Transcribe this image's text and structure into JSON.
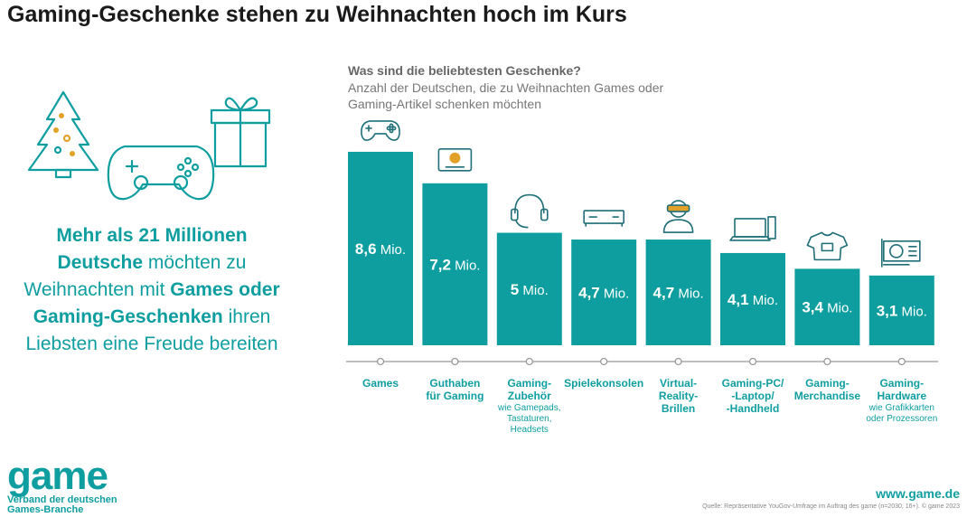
{
  "title": "Gaming-Geschenke stehen zu Weihnachten hoch im Kurs",
  "headline": {
    "part1": "Mehr als 21 Millionen Deutsche",
    "part2": " möchten zu Weihnachten mit ",
    "part3": "Games oder Gaming-Geschenken",
    "part4": " ihren Liebsten eine Freude bereiten"
  },
  "chart_data": {
    "type": "bar",
    "title": "Was sind die beliebtesten Geschenke?",
    "subtitle": "Anzahl der Deutschen, die zu Weihnachten Games oder Gaming-Artikel schenken möchten",
    "unit": "Mio.",
    "ylim": [
      0,
      9
    ],
    "categories": [
      "Games",
      "Guthaben für Gaming",
      "Gaming-Zubehör",
      "Spielekonsolen",
      "Virtual-Reality-Brillen",
      "Gaming-PC/-Laptop/-Handheld",
      "Gaming-Merchandise",
      "Gaming-Hardware"
    ],
    "category_lines": [
      [
        "Games"
      ],
      [
        "Guthaben",
        "für Gaming"
      ],
      [
        "Gaming-",
        "Zubehör"
      ],
      [
        "Spielekonsolen"
      ],
      [
        "Virtual-",
        "Reality-",
        "Brillen"
      ],
      [
        "Gaming-PC/",
        "-Laptop/",
        "-Handheld"
      ],
      [
        "Gaming-",
        "Merchandise"
      ],
      [
        "Gaming-",
        "Hardware"
      ]
    ],
    "category_notes": [
      [],
      [],
      [
        "wie Gamepads,",
        "Tastaturen,",
        "Headsets"
      ],
      [],
      [],
      [],
      [],
      [
        "wie Grafikkarten",
        "oder Prozessoren"
      ]
    ],
    "values": [
      8.6,
      7.2,
      5,
      4.7,
      4.7,
      4.1,
      3.4,
      3.1
    ],
    "value_labels": [
      "8,6",
      "7,2",
      "5",
      "4,7",
      "4,7",
      "4,1",
      "3,4",
      "3,1"
    ],
    "icons": [
      "gamepad-icon",
      "voucher-icon",
      "headset-icon",
      "console-icon",
      "vr-headset-icon",
      "laptop-icon",
      "tshirt-icon",
      "graphics-card-icon"
    ],
    "colors": {
      "bar": "#0f9ea0",
      "axis": "#999999",
      "label": "#0f9ea0",
      "note": "#0f9ea0"
    }
  },
  "logo": {
    "word": "game",
    "sub1": "Verband der deutschen",
    "sub2": "Games-Branche"
  },
  "website": "www.game.de",
  "source": "Quelle: Repräsentative YouGov-Umfrage im Auftrag des game (n=2030, 16+). © game 2023"
}
